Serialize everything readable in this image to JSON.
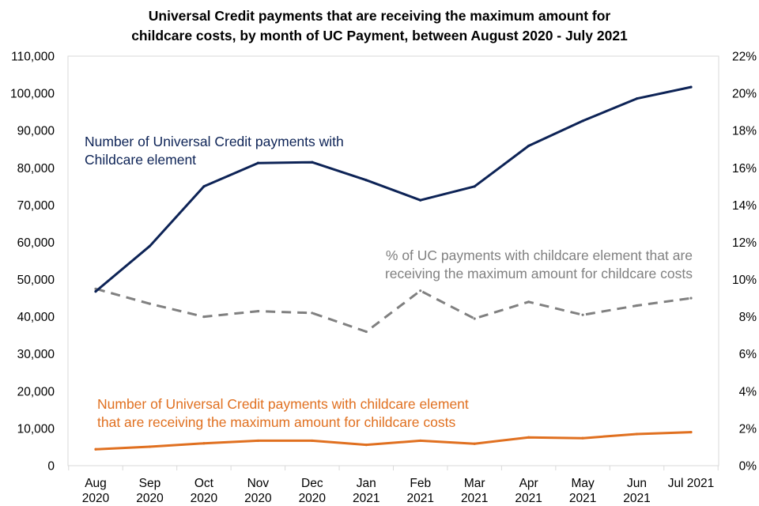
{
  "chart_data": {
    "type": "line",
    "title": "Universal Credit payments that are receiving the maximum amount for childcare costs, by month of UC Payment, between August 2020 - July 2021",
    "title_lines": [
      "Universal Credit payments that are receiving the maximum amount for",
      "childcare costs, by month of UC Payment, between August 2020 - July 2021"
    ],
    "categories": [
      {
        "month": "Aug",
        "year": "2020"
      },
      {
        "month": "Sep",
        "year": "2020"
      },
      {
        "month": "Oct",
        "year": "2020"
      },
      {
        "month": "Nov",
        "year": "2020"
      },
      {
        "month": "Dec",
        "year": "2020"
      },
      {
        "month": "Jan",
        "year": "2021"
      },
      {
        "month": "Feb",
        "year": "2021"
      },
      {
        "month": "Mar",
        "year": "2021"
      },
      {
        "month": "Apr",
        "year": "2021"
      },
      {
        "month": "May",
        "year": "2021"
      },
      {
        "month": "Jun",
        "year": "2021"
      },
      {
        "month": "Jul 2021",
        "year": ""
      }
    ],
    "y_left": {
      "min": 0,
      "max": 110000,
      "step": 10000,
      "tick_labels": [
        "0",
        "10,000",
        "20,000",
        "30,000",
        "40,000",
        "50,000",
        "60,000",
        "70,000",
        "80,000",
        "90,000",
        "100,000",
        "110,000"
      ]
    },
    "y_right": {
      "min": 0,
      "max": 22,
      "step": 2,
      "tick_labels": [
        "0%",
        "2%",
        "4%",
        "6%",
        "8%",
        "10%",
        "12%",
        "14%",
        "16%",
        "18%",
        "20%",
        "22%"
      ]
    },
    "grid": false,
    "series": [
      {
        "name": "Number of Universal Credit payments with Childcare element",
        "label_lines": [
          "Number of Universal Credit payments with",
          "Childcare element"
        ],
        "axis": "left",
        "color": "#0d2356",
        "dash": "solid",
        "values": [
          46800,
          59000,
          75000,
          81300,
          81500,
          76700,
          71300,
          75000,
          85900,
          92600,
          98600,
          101700
        ]
      },
      {
        "name": "% of UC payments with childcare element that are receiving the maximum amount for childcare costs",
        "label_lines": [
          "% of UC payments with childcare element that are",
          "receiving the maximum amount for childcare costs"
        ],
        "axis": "right",
        "color": "#808080",
        "dash": "dashed",
        "values": [
          9.5,
          8.7,
          8.0,
          8.3,
          8.2,
          7.2,
          9.4,
          7.9,
          8.8,
          8.1,
          8.6,
          9.0
        ]
      },
      {
        "name": "Number of Universal Credit payments with childcare element that are receiving the maximum amount for childcare costs",
        "label_lines": [
          "Number of Universal Credit payments with childcare element",
          "that are receiving the maximum amount for childcare costs"
        ],
        "axis": "left",
        "color": "#e07020",
        "dash": "solid",
        "values": [
          4400,
          5100,
          6000,
          6700,
          6700,
          5600,
          6700,
          5900,
          7600,
          7400,
          8500,
          9000
        ]
      }
    ]
  }
}
